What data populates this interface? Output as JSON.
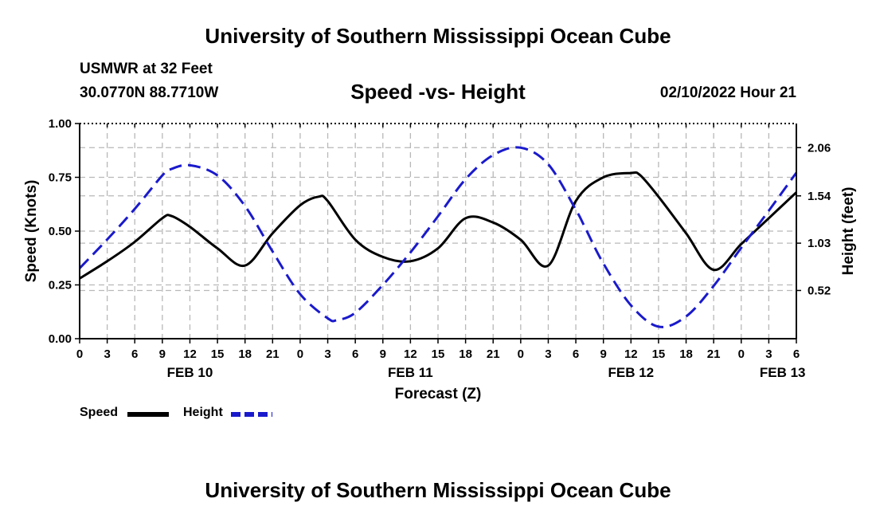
{
  "header": {
    "title": "University of Southern Mississippi Ocean Cube",
    "station": "USMWR at 32 Feet",
    "coordinates": "30.0770N  88.7710W",
    "subtitle": "Speed -vs- Height",
    "datetime": "02/10/2022 Hour 21"
  },
  "footer": {
    "title": "University of Southern Mississippi Ocean Cube"
  },
  "legend": {
    "speed_label": "Speed",
    "height_label": "Height"
  },
  "colors": {
    "speed": "#000000",
    "height": "#1a1acc",
    "grid": "#b8b8b8"
  },
  "chart_data": {
    "type": "line",
    "title": "Speed -vs- Height",
    "xlabel": "Forecast (Z)",
    "ylabel": "Speed (Knots)",
    "y2label": "Height (feet)",
    "xlim": [
      0,
      78
    ],
    "ylim": [
      0,
      1.0
    ],
    "y2lim": [
      0,
      2.32
    ],
    "x_tick_labels": [
      "0",
      "3",
      "6",
      "9",
      "12",
      "15",
      "18",
      "21",
      "0",
      "3",
      "6",
      "9",
      "12",
      "15",
      "18",
      "21",
      "0",
      "3",
      "6",
      "9",
      "12",
      "15",
      "18",
      "21",
      "0",
      "3",
      "6"
    ],
    "y_tick_labels": [
      "0.00",
      "0.25",
      "0.50",
      "0.75",
      "1.00"
    ],
    "y2_tick_labels": [
      "0.52",
      "1.03",
      "1.54",
      "2.06"
    ],
    "y2_tick_values": [
      0.52,
      1.03,
      1.54,
      2.06
    ],
    "date_labels": [
      {
        "label": "FEB 10",
        "x": 12
      },
      {
        "label": "FEB 11",
        "x": 36
      },
      {
        "label": "FEB 12",
        "x": 60
      },
      {
        "label": "FEB 13",
        "x": 76.5
      }
    ],
    "series": [
      {
        "name": "Speed",
        "axis": "left",
        "style": "solid",
        "x": [
          0,
          3,
          6,
          9,
          10,
          12,
          15,
          18,
          21,
          24,
          26,
          27,
          30,
          33,
          36,
          39,
          42,
          45,
          48,
          51,
          54,
          57,
          60,
          61,
          63,
          66,
          69,
          72,
          75,
          78
        ],
        "values": [
          0.28,
          0.36,
          0.45,
          0.56,
          0.57,
          0.52,
          0.42,
          0.34,
          0.49,
          0.62,
          0.66,
          0.64,
          0.46,
          0.38,
          0.36,
          0.42,
          0.56,
          0.54,
          0.46,
          0.34,
          0.64,
          0.75,
          0.77,
          0.76,
          0.66,
          0.49,
          0.32,
          0.44,
          0.56,
          0.68
        ]
      },
      {
        "name": "Height",
        "axis": "right",
        "style": "dashed",
        "x": [
          0,
          3,
          6,
          9,
          10,
          12,
          15,
          18,
          21,
          24,
          27,
          28,
          30,
          33,
          36,
          39,
          42,
          45,
          48,
          51,
          54,
          55,
          57,
          60,
          63,
          66,
          69,
          72,
          75,
          78
        ],
        "values": [
          0.76,
          1.07,
          1.4,
          1.76,
          1.83,
          1.87,
          1.76,
          1.43,
          0.94,
          0.48,
          0.22,
          0.2,
          0.28,
          0.58,
          0.93,
          1.32,
          1.72,
          1.98,
          2.06,
          1.88,
          1.39,
          1.2,
          0.81,
          0.36,
          0.13,
          0.24,
          0.57,
          0.98,
          1.38,
          1.79
        ]
      }
    ]
  }
}
